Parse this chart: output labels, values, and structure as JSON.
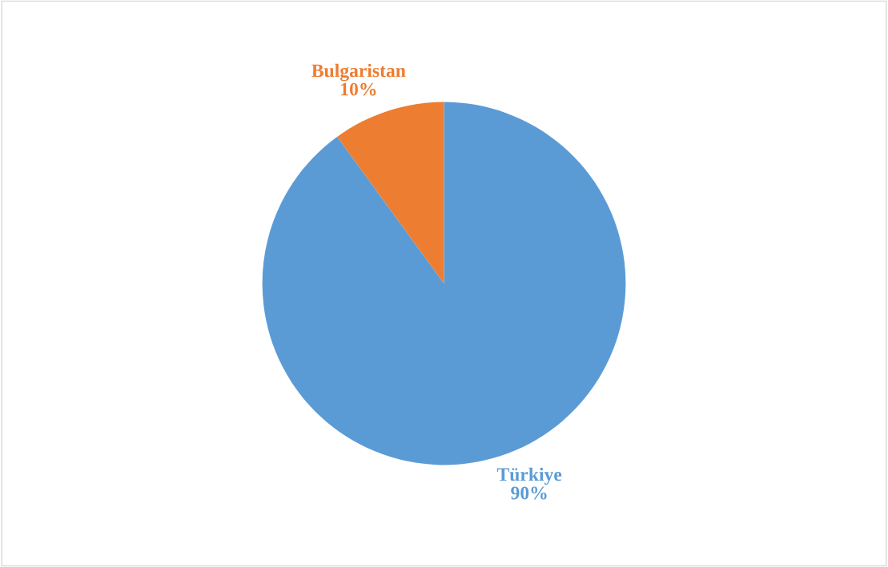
{
  "chart_data": {
    "type": "pie",
    "categories": [
      "Türkiye",
      "Bulgaristan"
    ],
    "values": [
      90,
      10
    ],
    "colors": [
      "#5b9bd5",
      "#ed7d31"
    ],
    "value_labels": [
      "90%",
      "10%"
    ],
    "legend": false
  }
}
